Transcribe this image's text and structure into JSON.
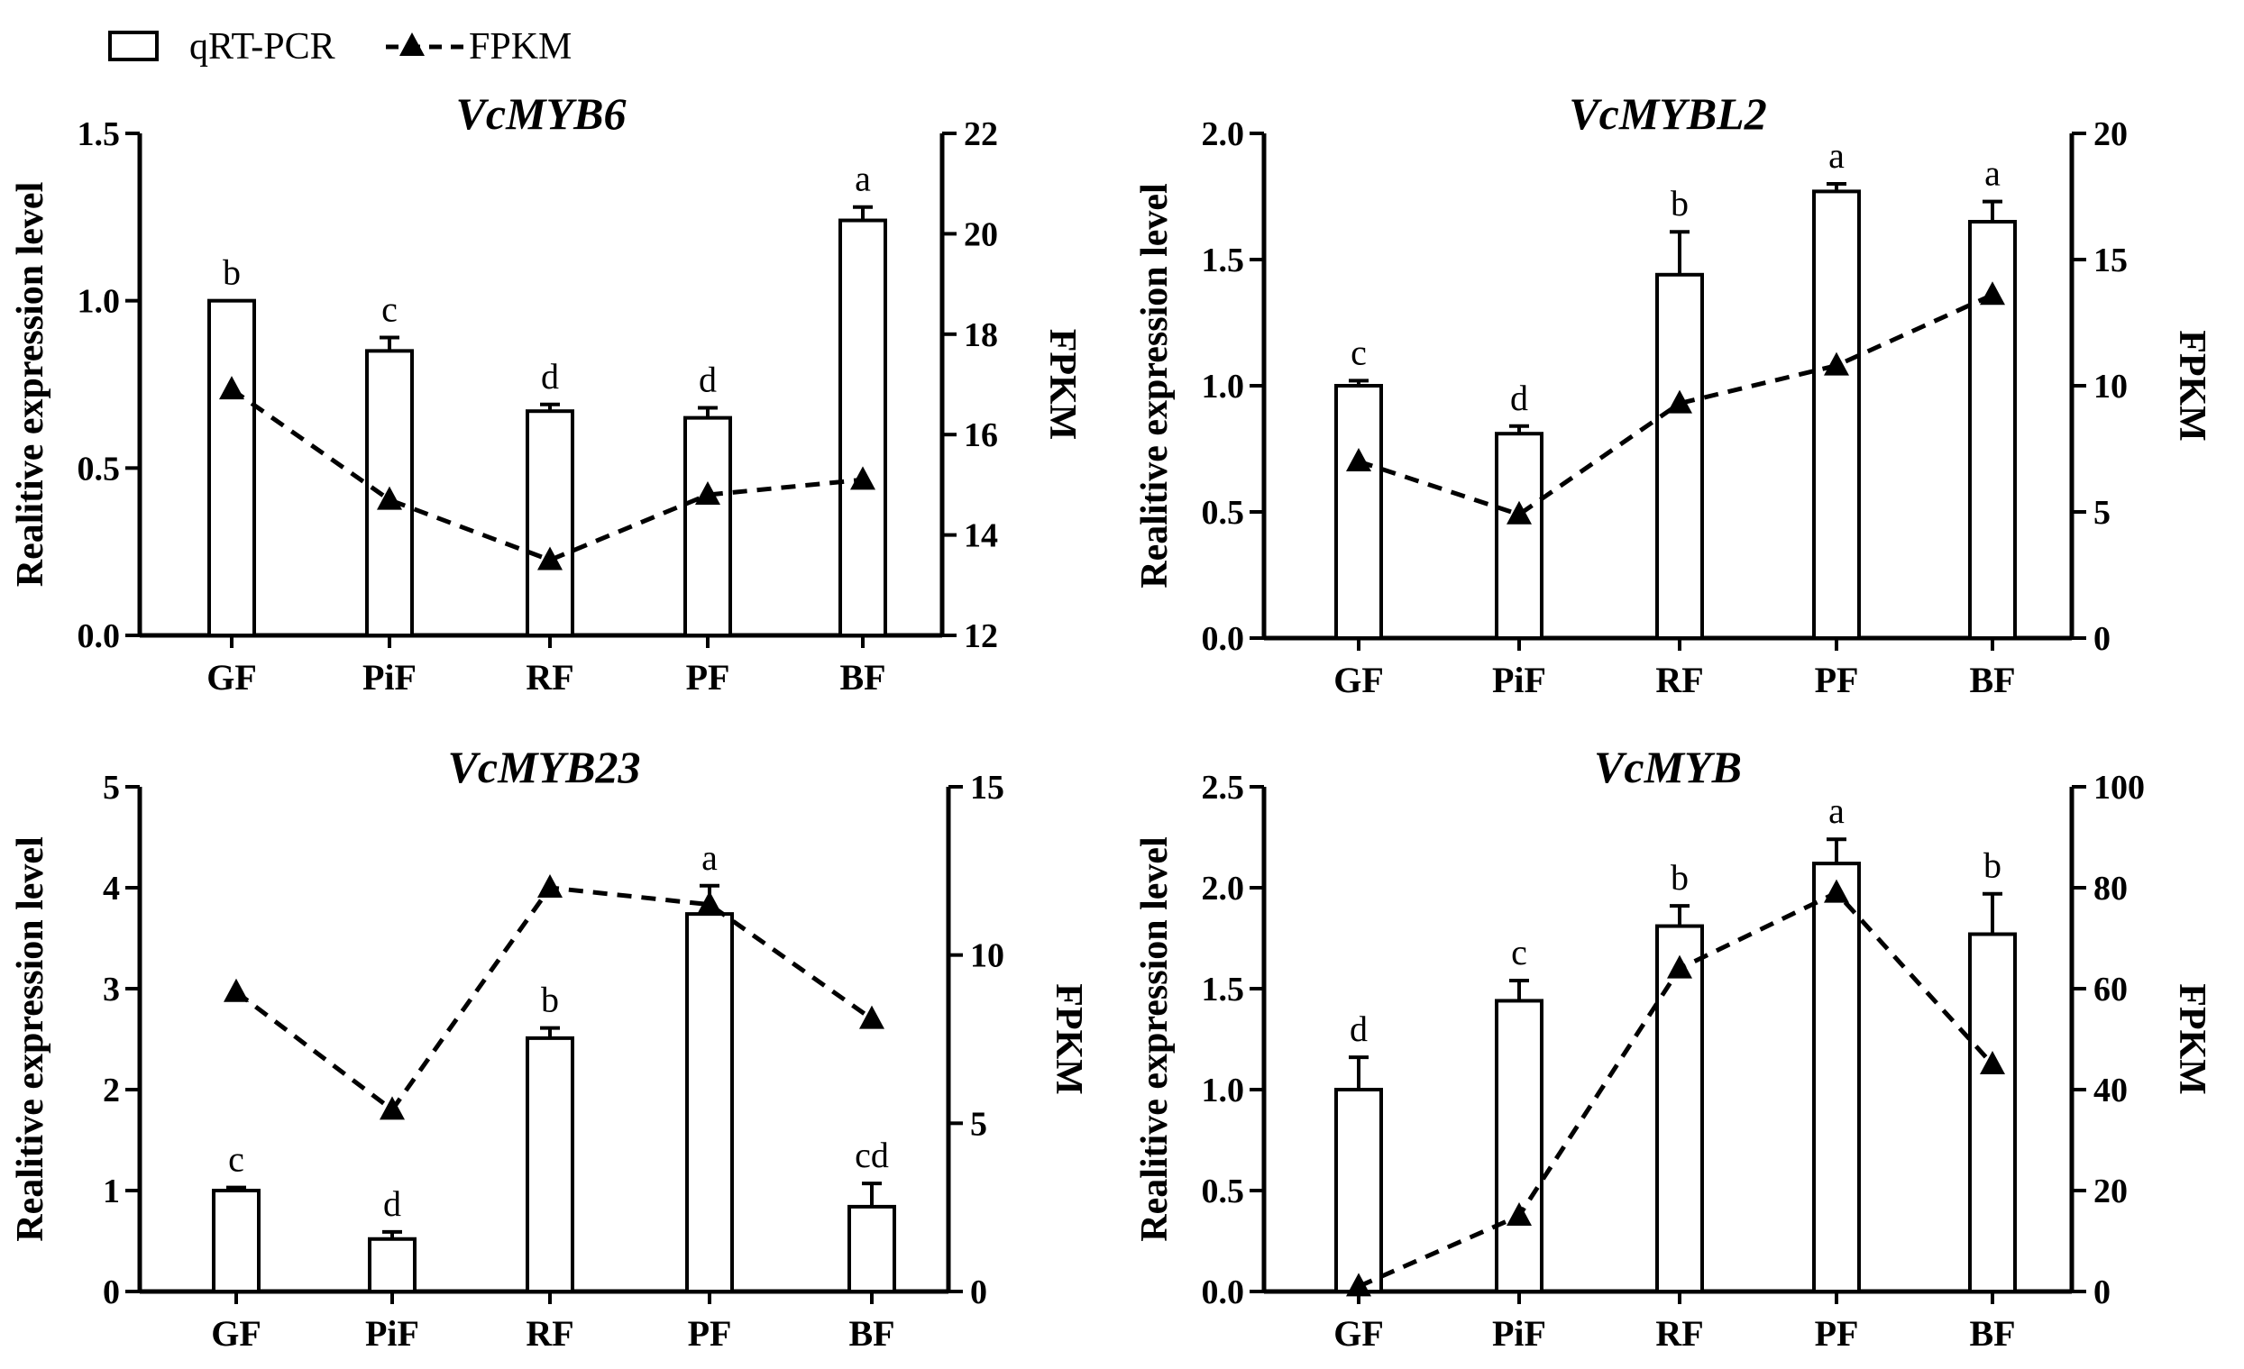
{
  "legend": {
    "bar_label": "qRT-PCR",
    "line_label": "FPKM"
  },
  "chart_data": [
    {
      "type": "bar",
      "title": "VcMYB6",
      "categories": [
        "GF",
        "PiF",
        "RF",
        "PF",
        "BF"
      ],
      "ylabel": "Realitive expression level",
      "y2label": "FPKM",
      "ylim": [
        0,
        1.5
      ],
      "yticks": [
        "0.0",
        "0.5",
        "1.0",
        "1.5"
      ],
      "y2lim": [
        12,
        22
      ],
      "y2ticks": [
        "12",
        "14",
        "16",
        "18",
        "20",
        "22"
      ],
      "series": [
        {
          "name": "qRT-PCR",
          "values": [
            1.0,
            0.85,
            0.67,
            0.65,
            1.24
          ],
          "errors": [
            0.0,
            0.04,
            0.02,
            0.03,
            0.04
          ]
        },
        {
          "name": "FPKM",
          "values": [
            16.9,
            14.7,
            13.5,
            14.8,
            15.1
          ]
        }
      ],
      "letters": [
        "b",
        "c",
        "d",
        "d",
        "a"
      ]
    },
    {
      "type": "bar",
      "title": "VcMYBL2",
      "categories": [
        "GF",
        "PiF",
        "RF",
        "PF",
        "BF"
      ],
      "ylabel": "Realitive expression level",
      "y2label": "FPKM",
      "ylim": [
        0,
        2.0
      ],
      "yticks": [
        "0.0",
        "0.5",
        "1.0",
        "1.5",
        "2.0"
      ],
      "y2lim": [
        0,
        20
      ],
      "y2ticks": [
        "0",
        "5",
        "10",
        "15",
        "20"
      ],
      "series": [
        {
          "name": "qRT-PCR",
          "values": [
            1.0,
            0.81,
            1.44,
            1.77,
            1.65
          ],
          "errors": [
            0.02,
            0.03,
            0.17,
            0.03,
            0.08
          ]
        },
        {
          "name": "FPKM",
          "values": [
            7.0,
            4.9,
            9.3,
            10.8,
            13.6
          ]
        }
      ],
      "letters": [
        "c",
        "d",
        "b",
        "a",
        "a"
      ]
    },
    {
      "type": "bar",
      "title": "VcMYB23",
      "categories": [
        "GF",
        "PiF",
        "RF",
        "PF",
        "BF"
      ],
      "ylabel": "Realitive expression level",
      "y2label": "FPKM",
      "ylim": [
        0,
        5
      ],
      "yticks": [
        "0",
        "1",
        "2",
        "3",
        "4",
        "5"
      ],
      "y2lim": [
        0,
        15
      ],
      "y2ticks": [
        "0",
        "5",
        "10",
        "15"
      ],
      "series": [
        {
          "name": "qRT-PCR",
          "values": [
            1.0,
            0.52,
            2.51,
            3.74,
            0.84
          ],
          "errors": [
            0.03,
            0.07,
            0.1,
            0.28,
            0.23
          ]
        },
        {
          "name": "FPKM",
          "values": [
            8.9,
            5.4,
            12.0,
            11.5,
            8.1
          ]
        }
      ],
      "letters": [
        "c",
        "d",
        "b",
        "a",
        "cd"
      ]
    },
    {
      "type": "bar",
      "title": "VcMYB",
      "categories": [
        "GF",
        "PiF",
        "RF",
        "PF",
        "BF"
      ],
      "ylabel": "Realitive expression level",
      "y2label": "FPKM",
      "ylim": [
        0,
        2.5
      ],
      "yticks": [
        "0.0",
        "0.5",
        "1.0",
        "1.5",
        "2.0",
        "2.5"
      ],
      "y2lim": [
        0,
        100
      ],
      "y2ticks": [
        "0",
        "20",
        "40",
        "60",
        "80",
        "100"
      ],
      "series": [
        {
          "name": "qRT-PCR",
          "values": [
            1.0,
            1.44,
            1.81,
            2.12,
            1.77
          ],
          "errors": [
            0.16,
            0.1,
            0.1,
            0.12,
            0.2
          ]
        },
        {
          "name": "FPKM",
          "values": [
            1,
            15,
            64,
            79,
            45
          ]
        }
      ],
      "letters": [
        "d",
        "c",
        "b",
        "a",
        "b"
      ]
    }
  ]
}
